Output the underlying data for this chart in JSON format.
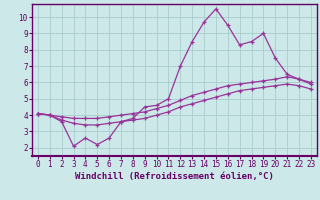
{
  "xlabel": "Windchill (Refroidissement éolien,°C)",
  "ylabel": "",
  "bg_color": "#cce8e8",
  "grid_color": "#aacccc",
  "line_color": "#993399",
  "spine_color": "#660066",
  "xlim": [
    -0.5,
    23.5
  ],
  "ylim": [
    1.5,
    10.8
  ],
  "xticks": [
    0,
    1,
    2,
    3,
    4,
    5,
    6,
    7,
    8,
    9,
    10,
    11,
    12,
    13,
    14,
    15,
    16,
    17,
    18,
    19,
    20,
    21,
    22,
    23
  ],
  "yticks": [
    2,
    3,
    4,
    5,
    6,
    7,
    8,
    9,
    10
  ],
  "line1_x": [
    0,
    1,
    2,
    3,
    4,
    5,
    6,
    7,
    8,
    9,
    10,
    11,
    12,
    13,
    14,
    15,
    16,
    17,
    18,
    19,
    20,
    21,
    22,
    23
  ],
  "line1_y": [
    4.1,
    4.0,
    3.6,
    2.1,
    2.6,
    2.2,
    2.6,
    3.6,
    3.8,
    4.5,
    4.6,
    5.0,
    7.0,
    8.5,
    9.7,
    10.5,
    9.5,
    8.3,
    8.5,
    9.0,
    7.5,
    6.5,
    6.2,
    5.9
  ],
  "line2_x": [
    0,
    1,
    2,
    3,
    4,
    5,
    6,
    7,
    8,
    9,
    10,
    11,
    12,
    13,
    14,
    15,
    16,
    17,
    18,
    19,
    20,
    21,
    22,
    23
  ],
  "line2_y": [
    4.1,
    4.0,
    3.9,
    3.8,
    3.8,
    3.8,
    3.9,
    4.0,
    4.1,
    4.2,
    4.4,
    4.6,
    4.9,
    5.2,
    5.4,
    5.6,
    5.8,
    5.9,
    6.0,
    6.1,
    6.2,
    6.35,
    6.2,
    6.0
  ],
  "line3_x": [
    0,
    1,
    2,
    3,
    4,
    5,
    6,
    7,
    8,
    9,
    10,
    11,
    12,
    13,
    14,
    15,
    16,
    17,
    18,
    19,
    20,
    21,
    22,
    23
  ],
  "line3_y": [
    4.1,
    4.0,
    3.7,
    3.5,
    3.4,
    3.4,
    3.5,
    3.6,
    3.7,
    3.8,
    4.0,
    4.2,
    4.5,
    4.7,
    4.9,
    5.1,
    5.3,
    5.5,
    5.6,
    5.7,
    5.8,
    5.9,
    5.8,
    5.6
  ],
  "marker": "+",
  "tick_fontsize": 5.5,
  "xlabel_fontsize": 6.5
}
